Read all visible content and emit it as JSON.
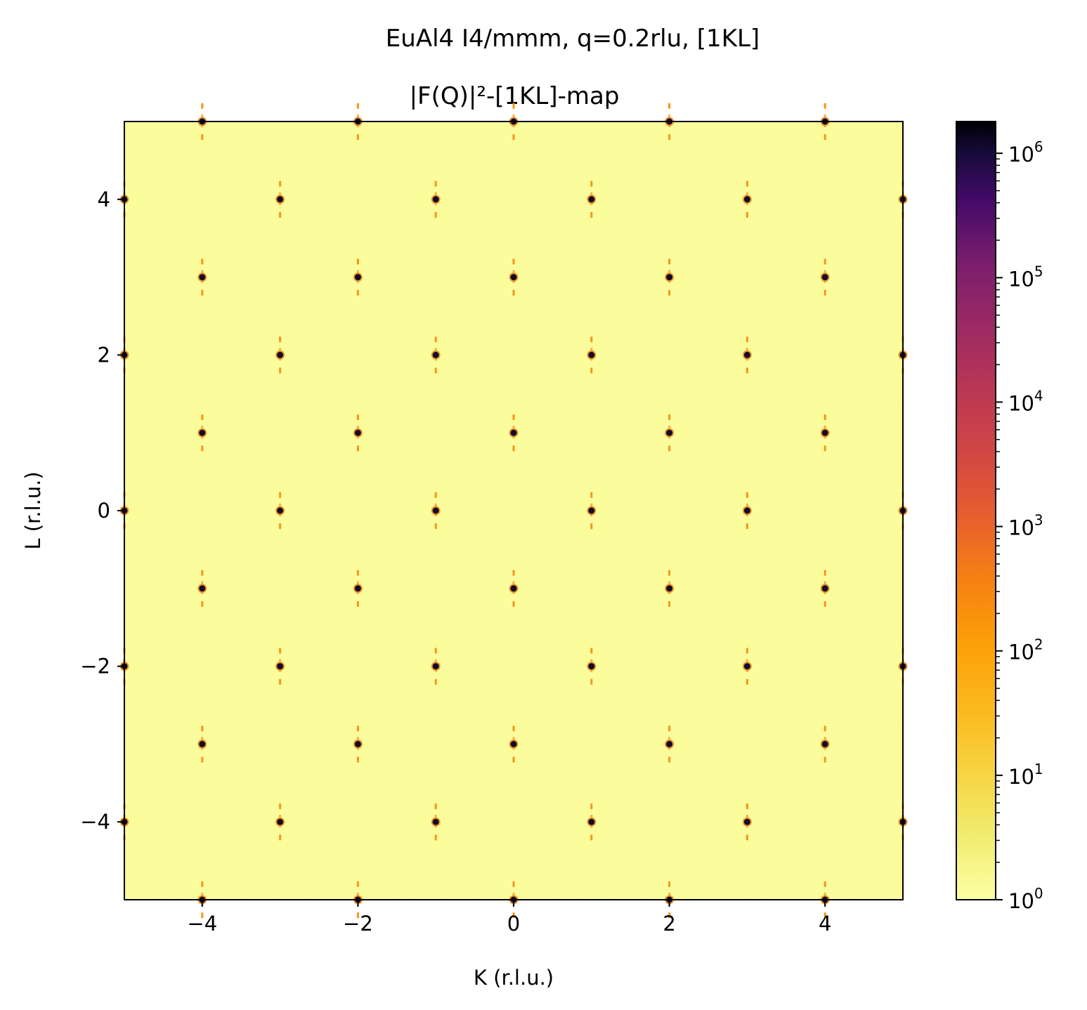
{
  "chart_data": {
    "type": "heatmap",
    "title": "EuAl4 I4/mmm, q=0.2rlu, [1KL]",
    "subtitle": "|F(Q)|²-[1KL]-map",
    "xlabel": "K (r.l.u.)",
    "ylabel": "L (r.l.u.)",
    "xlim": [
      -5,
      5
    ],
    "ylim": [
      -5,
      5
    ],
    "x_ticks": [
      {
        "value": -4,
        "label": "−4"
      },
      {
        "value": -2,
        "label": "−2"
      },
      {
        "value": 0,
        "label": "0"
      },
      {
        "value": 2,
        "label": "2"
      },
      {
        "value": 4,
        "label": "4"
      }
    ],
    "y_ticks": [
      {
        "value": -4,
        "label": "−4"
      },
      {
        "value": -2,
        "label": "−2"
      },
      {
        "value": 0,
        "label": "0"
      },
      {
        "value": 2,
        "label": "2"
      },
      {
        "value": 4,
        "label": "4"
      }
    ],
    "colorbar": {
      "scale": "log",
      "min": 1,
      "max": 1800000,
      "colormap": "inferno_r",
      "ticks": [
        {
          "value": 1,
          "base": "10",
          "exp": "0"
        },
        {
          "value": 10,
          "base": "10",
          "exp": "1"
        },
        {
          "value": 100,
          "base": "10",
          "exp": "2"
        },
        {
          "value": 1000,
          "base": "10",
          "exp": "3"
        },
        {
          "value": 10000,
          "base": "10",
          "exp": "4"
        },
        {
          "value": 100000,
          "base": "10",
          "exp": "5"
        },
        {
          "value": 1000000,
          "base": "10",
          "exp": "6"
        }
      ]
    },
    "background_intensity": 1,
    "bragg_peak_rule": "K + L odd (H = 1)",
    "bragg_peak_intensity": 1000000,
    "satellite_offset_L": 0.2,
    "satellite_intensity": 100,
    "grid": false
  }
}
